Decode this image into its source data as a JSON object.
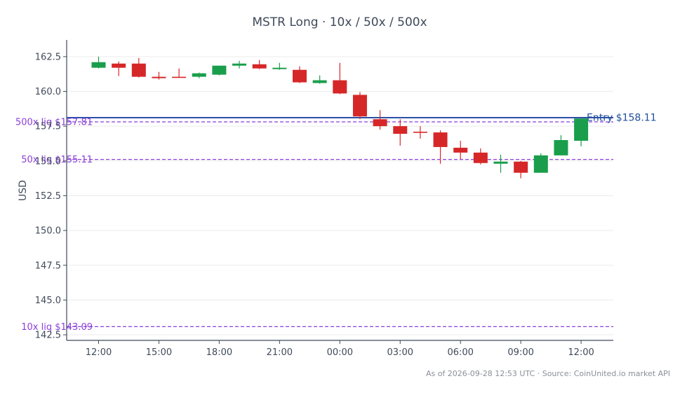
{
  "chart_data": {
    "type": "candlestick",
    "title": "MSTR Long · 10x / 50x / 500x",
    "ylabel": "USD",
    "xlabel": "",
    "ylim": [
      142.1,
      163.7
    ],
    "grid": "horizontal",
    "colors": {
      "up": "#1a9e4b",
      "down": "#d62728",
      "entry": "#2a4fa8",
      "liq": "#8b3fd9",
      "grid": "#ececec",
      "axis": "#3f4a5a"
    },
    "xticks": [
      "12:00",
      "15:00",
      "18:00",
      "21:00",
      "00:00",
      "03:00",
      "06:00",
      "09:00",
      "12:00"
    ],
    "yticks": [
      "142.5",
      "145.0",
      "147.5",
      "150.0",
      "152.5",
      "155.0",
      "157.5",
      "160.0",
      "162.5"
    ],
    "ytick_values": [
      142.5,
      145.0,
      147.5,
      150.0,
      152.5,
      155.0,
      157.5,
      160.0,
      162.5
    ],
    "candles": [
      {
        "o": 161.7,
        "h": 162.5,
        "l": 161.65,
        "c": 162.1
      },
      {
        "o": 162.0,
        "h": 162.15,
        "l": 161.1,
        "c": 161.7
      },
      {
        "o": 162.0,
        "h": 162.4,
        "l": 161.0,
        "c": 161.05
      },
      {
        "o": 161.05,
        "h": 161.4,
        "l": 160.85,
        "c": 160.95
      },
      {
        "o": 161.05,
        "h": 161.65,
        "l": 161.0,
        "c": 161.0
      },
      {
        "o": 161.05,
        "h": 161.35,
        "l": 160.95,
        "c": 161.3
      },
      {
        "o": 161.2,
        "h": 161.85,
        "l": 161.15,
        "c": 161.85
      },
      {
        "o": 161.85,
        "h": 162.2,
        "l": 161.65,
        "c": 162.0
      },
      {
        "o": 161.95,
        "h": 162.25,
        "l": 161.6,
        "c": 161.65
      },
      {
        "o": 161.6,
        "h": 162.05,
        "l": 161.55,
        "c": 161.7
      },
      {
        "o": 161.55,
        "h": 161.8,
        "l": 160.6,
        "c": 160.65
      },
      {
        "o": 160.6,
        "h": 161.15,
        "l": 160.55,
        "c": 160.8
      },
      {
        "o": 160.8,
        "h": 162.05,
        "l": 159.8,
        "c": 159.85
      },
      {
        "o": 159.75,
        "h": 159.95,
        "l": 158.0,
        "c": 158.2
      },
      {
        "o": 158.0,
        "h": 158.65,
        "l": 157.25,
        "c": 157.5
      },
      {
        "o": 157.5,
        "h": 158.0,
        "l": 156.1,
        "c": 156.95
      },
      {
        "o": 157.1,
        "h": 157.5,
        "l": 156.6,
        "c": 157.05
      },
      {
        "o": 157.05,
        "h": 157.2,
        "l": 154.8,
        "c": 156.0
      },
      {
        "o": 155.95,
        "h": 156.45,
        "l": 155.1,
        "c": 155.6
      },
      {
        "o": 155.6,
        "h": 155.9,
        "l": 154.75,
        "c": 154.85
      },
      {
        "o": 154.8,
        "h": 155.45,
        "l": 154.15,
        "c": 154.95
      },
      {
        "o": 154.95,
        "h": 155.0,
        "l": 153.75,
        "c": 154.15
      },
      {
        "o": 154.15,
        "h": 155.55,
        "l": 154.15,
        "c": 155.4
      },
      {
        "o": 155.4,
        "h": 156.85,
        "l": 155.4,
        "c": 156.5
      },
      {
        "o": 156.45,
        "h": 158.05,
        "l": 156.05,
        "c": 158.05
      }
    ],
    "lines": [
      {
        "label": "Entry $158.11",
        "value": 158.11,
        "style": "solid",
        "color": "#2a4fa8",
        "label_side": "right"
      },
      {
        "label": "500x liq $157.81",
        "value": 157.81,
        "style": "dashed",
        "color": "#8b3fd9",
        "label_side": "left"
      },
      {
        "label": "50x liq $155.11",
        "value": 155.11,
        "style": "dashed",
        "color": "#8b3fd9",
        "label_side": "left"
      },
      {
        "label": "10x liq $143.09",
        "value": 143.09,
        "style": "dashed",
        "color": "#8b3fd9",
        "label_side": "left"
      }
    ]
  },
  "footer": "As of 2026-09-28 12:53 UTC · Source: CoinUnited.io market API"
}
